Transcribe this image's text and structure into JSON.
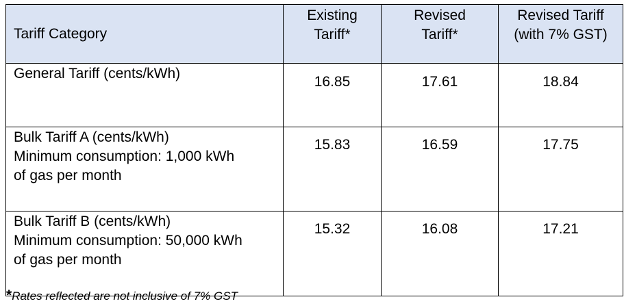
{
  "table": {
    "headers": {
      "category": "Tariff Category",
      "existing": [
        "Existing",
        "Tariff*"
      ],
      "revised": [
        "Revised",
        "Tariff*"
      ],
      "revised_gst": [
        "Revised Tariff",
        "(with 7% GST)"
      ]
    },
    "rows": [
      {
        "category_lines": [
          "General Tariff (cents/kWh)"
        ],
        "existing": "16.85",
        "revised": "17.61",
        "revised_gst": "18.84"
      },
      {
        "category_lines": [
          "Bulk Tariff A (cents/kWh)",
          "Minimum consumption: 1,000 kWh",
          "of gas per month"
        ],
        "existing": "15.83",
        "revised": "16.59",
        "revised_gst": "17.75"
      },
      {
        "category_lines": [
          "Bulk Tariff B (cents/kWh)",
          "Minimum consumption: 50,000 kWh",
          "of gas per month"
        ],
        "existing": "15.32",
        "revised": "16.08",
        "revised_gst": "17.21"
      }
    ]
  },
  "footnote": {
    "marker": "*",
    "text": "Rates reflected are not inclusive of 7% GST"
  },
  "colors": {
    "header_background": "#dae3f3",
    "border": "#000000"
  }
}
